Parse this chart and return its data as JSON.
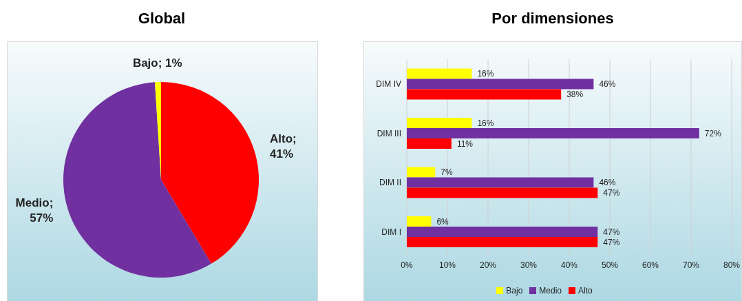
{
  "chart_data": [
    {
      "type": "pie",
      "title": "Global",
      "categories": [
        "Alto",
        "Medio",
        "Bajo"
      ],
      "values": [
        41,
        57,
        1
      ],
      "colors": [
        "#ff0000",
        "#7030a0",
        "#ffff00"
      ],
      "value_labels": [
        "; 41%",
        "; 57%",
        "; 1%"
      ]
    },
    {
      "type": "bar",
      "title": "Por dimensiones",
      "orientation": "horizontal",
      "categories": [
        "DIM IV",
        "DIM III",
        "DIM II",
        "DIM I"
      ],
      "series": [
        {
          "name": "Bajo",
          "color": "#ffff00",
          "values": [
            16,
            16,
            7,
            6
          ],
          "value_labels": [
            "16%",
            "16%",
            "7%",
            "6%"
          ]
        },
        {
          "name": "Medio",
          "color": "#7030a0",
          "values": [
            46,
            72,
            46,
            47
          ],
          "value_labels": [
            "46%",
            "72%",
            "46%",
            "47%"
          ]
        },
        {
          "name": "Alto",
          "color": "#ff0000",
          "values": [
            38,
            11,
            47,
            47
          ],
          "value_labels": [
            "38%",
            "11%",
            "47%",
            "47%"
          ]
        }
      ],
      "xlim": [
        0,
        80
      ],
      "xticks": [
        {
          "value": 0,
          "label": "0%"
        },
        {
          "value": 10,
          "label": "10%"
        },
        {
          "value": 20,
          "label": "20%"
        },
        {
          "value": 30,
          "label": "30%"
        },
        {
          "value": 40,
          "label": "40%"
        },
        {
          "value": 50,
          "label": "50%"
        },
        {
          "value": 60,
          "label": "60%"
        },
        {
          "value": 70,
          "label": "70%"
        },
        {
          "value": 80,
          "label": "80%"
        }
      ],
      "grid": "x",
      "legend": "bottom"
    }
  ]
}
